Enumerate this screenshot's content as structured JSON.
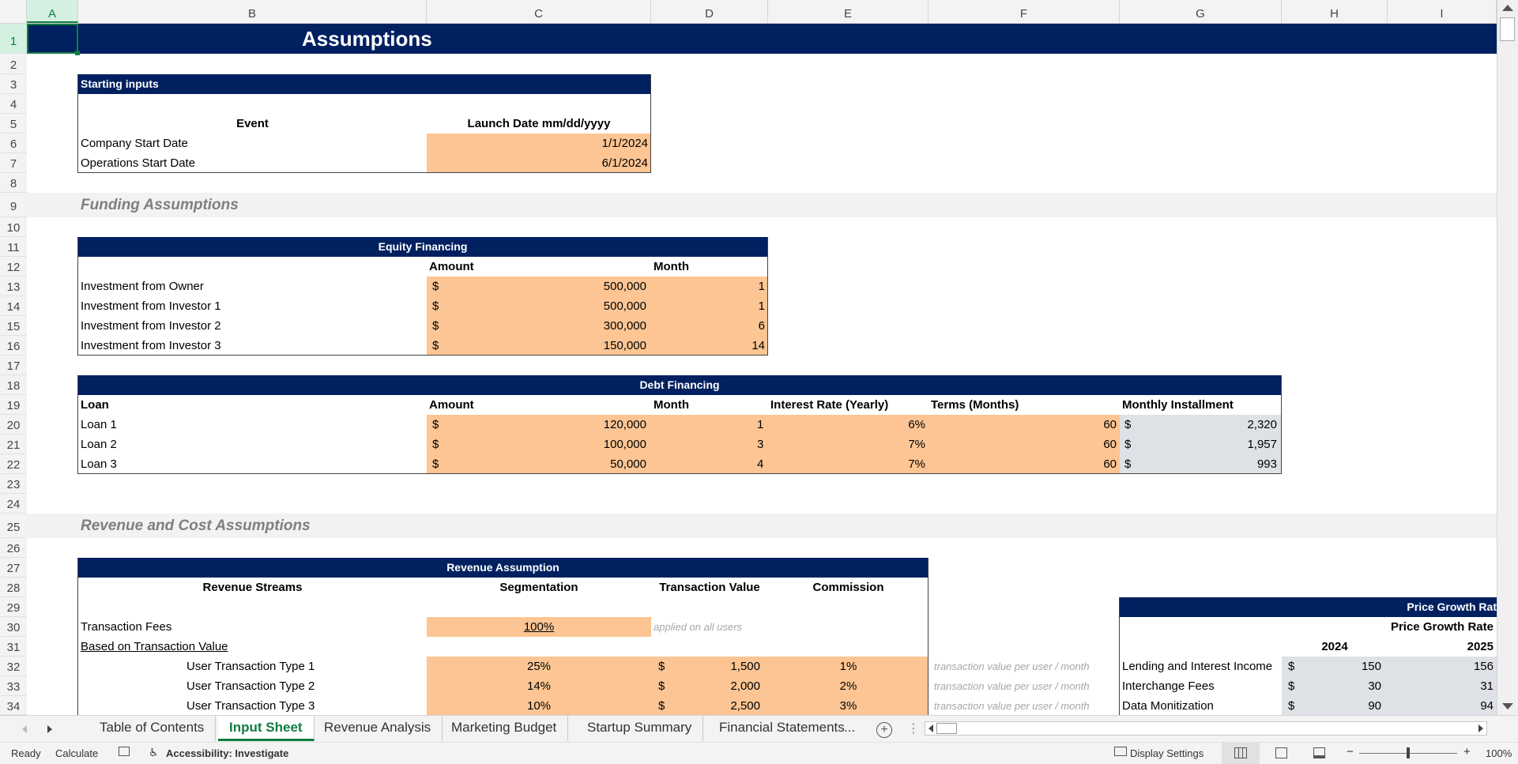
{
  "columns": [
    "A",
    "B",
    "C",
    "D",
    "E",
    "F",
    "G",
    "H",
    "I"
  ],
  "rows": [
    "1",
    "2",
    "3",
    "4",
    "5",
    "6",
    "7",
    "8",
    "9",
    "10",
    "11",
    "12",
    "13",
    "14",
    "15",
    "16",
    "17",
    "18",
    "19",
    "20",
    "21",
    "22",
    "23",
    "24",
    "25",
    "26",
    "27",
    "28",
    "29",
    "30",
    "31",
    "32",
    "33",
    "34"
  ],
  "title": "Assumptions",
  "starting": {
    "header": "Starting inputs",
    "col_event": "Event",
    "col_date": "Launch Date mm/dd/yyyy",
    "rows": [
      {
        "label": "Company Start Date",
        "value": "1/1/2024"
      },
      {
        "label": "Operations Start Date",
        "value": "6/1/2024"
      }
    ]
  },
  "funding_title": "Funding Assumptions",
  "equity": {
    "header": "Equity Financing",
    "col_amount": "Amount",
    "col_month": "Month",
    "currency": "$",
    "rows": [
      {
        "label": "Investment from Owner",
        "amount": "500,000",
        "month": "1"
      },
      {
        "label": "Investment from Investor 1",
        "amount": "500,000",
        "month": "1"
      },
      {
        "label": "Investment from Investor 2",
        "amount": "300,000",
        "month": "6"
      },
      {
        "label": "Investment from Investor 3",
        "amount": "150,000",
        "month": "14"
      }
    ]
  },
  "debt": {
    "header": "Debt Financing",
    "col_loan": "Loan",
    "col_amount": "Amount",
    "col_month": "Month",
    "col_rate": "Interest Rate (Yearly)",
    "col_terms": "Terms (Months)",
    "col_install": "Monthly Installment",
    "currency": "$",
    "rows": [
      {
        "label": "Loan 1",
        "amount": "120,000",
        "month": "1",
        "rate": "6%",
        "terms": "60",
        "install": "2,320"
      },
      {
        "label": "Loan 2",
        "amount": "100,000",
        "month": "3",
        "rate": "7%",
        "terms": "60",
        "install": "1,957"
      },
      {
        "label": "Loan 3",
        "amount": "50,000",
        "month": "4",
        "rate": "7%",
        "terms": "60",
        "install": "993"
      }
    ]
  },
  "revcost_title": "Revenue and Cost Assumptions",
  "revenue": {
    "header": "Revenue Assumption",
    "col_streams": "Revenue Streams",
    "col_seg": "Segmentation",
    "col_tv": "Transaction Value",
    "col_comm": "Commission",
    "fees_label": "Transaction Fees",
    "fees_value": "100%",
    "fees_note": "applied on all users",
    "based_label": "Based on Transaction Value",
    "currency": "$",
    "rows": [
      {
        "label": "User Transaction Type 1",
        "seg": "25%",
        "value": "1,500",
        "comm": "1%",
        "note": "transaction value per user / month"
      },
      {
        "label": "User Transaction Type 2",
        "seg": "14%",
        "value": "2,000",
        "comm": "2%",
        "note": "transaction value per user / month"
      },
      {
        "label": "User Transaction Type 3",
        "seg": "10%",
        "value": "2,500",
        "comm": "3%",
        "note": "transaction value per user / month"
      }
    ]
  },
  "price": {
    "header": "Price Growth Rat",
    "sub": "Price Growth Rate",
    "year1": "2024",
    "year2": "2025",
    "currency": "$",
    "rows": [
      {
        "label": "Lending and Interest Income",
        "y1": "150",
        "y2": "156"
      },
      {
        "label": "Interchange Fees",
        "y1": "30",
        "y2": "31"
      },
      {
        "label": "Data Monitization",
        "y1": "90",
        "y2": "94"
      }
    ]
  },
  "tabs": [
    "Table of Contents",
    "Input Sheet",
    "Revenue Analysis",
    "Marketing Budget",
    "Startup Summary",
    "Financial Statements",
    "..."
  ],
  "status": {
    "ready": "Ready",
    "calculate": "Calculate",
    "accessibility": "Accessibility: Investigate",
    "display": "Display Settings",
    "zoom": "100%"
  }
}
